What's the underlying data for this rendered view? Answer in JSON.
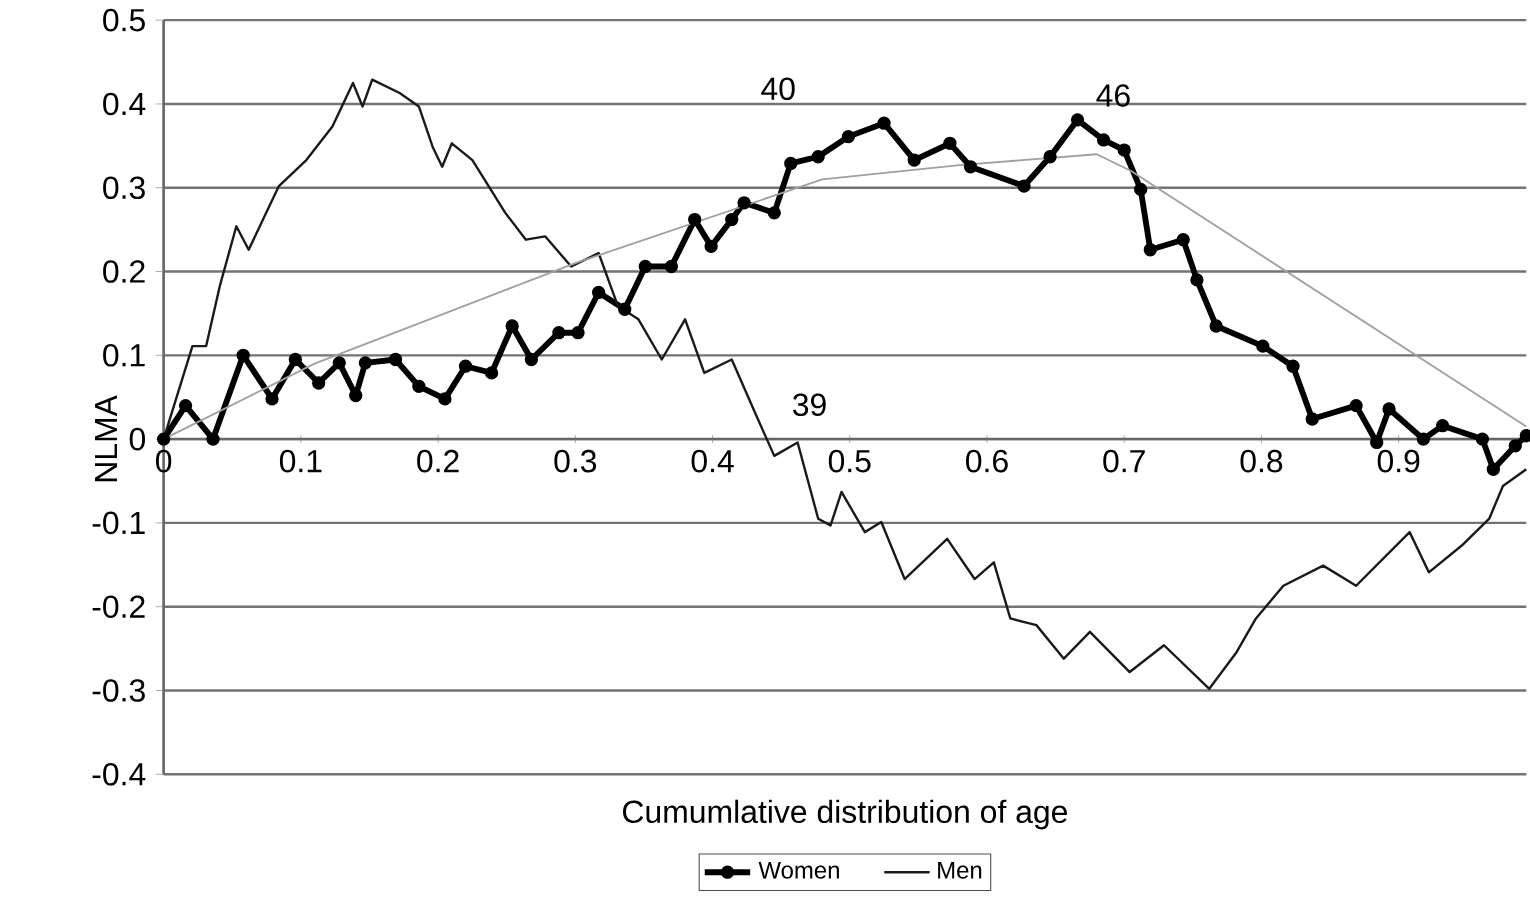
{
  "chart_data": {
    "type": "line",
    "xlabel": "Cumumlative distribution of age",
    "ylabel": "NLMA",
    "xlim": [
      0,
      0.993
    ],
    "ylim": [
      -0.4,
      0.5
    ],
    "xticks": [
      0,
      0.1,
      0.2,
      0.3,
      0.4,
      0.5,
      0.6,
      0.7,
      0.8,
      0.9
    ],
    "yticks": [
      -0.4,
      -0.3,
      -0.2,
      -0.1,
      0,
      0.1,
      0.2,
      0.3,
      0.4,
      0.5
    ],
    "grid": "y",
    "legend": "bottom",
    "line_style": "solid",
    "annotations": [
      "40",
      "46",
      "39"
    ],
    "series": [
      {
        "name": "Women",
        "color": "#000000",
        "marker": "circle",
        "x": [
          0,
          0.016,
          0.036,
          0.058,
          0.079,
          0.096,
          0.113,
          0.128,
          0.14,
          0.147,
          0.169,
          0.186,
          0.205,
          0.22,
          0.239,
          0.254,
          0.268,
          0.288,
          0.302,
          0.317,
          0.336,
          0.351,
          0.37,
          0.387,
          0.399,
          0.414,
          0.423,
          0.445,
          0.457,
          0.477,
          0.499,
          0.525,
          0.547,
          0.573,
          0.588,
          0.627,
          0.646,
          0.666,
          0.685,
          0.7,
          0.712,
          0.719,
          0.743,
          0.753,
          0.767,
          0.801,
          0.823,
          0.837,
          0.869,
          0.884,
          0.893,
          0.918,
          0.932,
          0.961,
          0.969,
          0.985,
          0.993
        ],
        "values": [
          0,
          0.04,
          0,
          0.1,
          0.048,
          0.095,
          0.067,
          0.091,
          0.052,
          0.091,
          0.095,
          0.063,
          0.048,
          0.087,
          0.079,
          0.135,
          0.095,
          0.127,
          0.127,
          0.175,
          0.155,
          0.206,
          0.206,
          0.262,
          0.23,
          0.262,
          0.282,
          0.27,
          0.329,
          0.337,
          0.361,
          0.377,
          0.333,
          0.353,
          0.325,
          0.302,
          0.337,
          0.381,
          0.357,
          0.345,
          0.298,
          0.226,
          0.238,
          0.19,
          0.135,
          0.111,
          0.087,
          0.024,
          0.04,
          -0.004,
          0.036,
          0,
          0.016,
          0,
          -0.036,
          -0.008,
          0.004
        ]
      },
      {
        "name": "Men",
        "color": "#1a1a1a",
        "marker": "none",
        "x": [
          0,
          0.021,
          0.031,
          0.041,
          0.053,
          0.062,
          0.084,
          0.104,
          0.123,
          0.138,
          0.145,
          0.152,
          0.172,
          0.186,
          0.196,
          0.203,
          0.21,
          0.225,
          0.249,
          0.264,
          0.278,
          0.297,
          0.317,
          0.331,
          0.346,
          0.363,
          0.38,
          0.394,
          0.414,
          0.433,
          0.445,
          0.462,
          0.477,
          0.486,
          0.494,
          0.511,
          0.523,
          0.54,
          0.571,
          0.591,
          0.605,
          0.617,
          0.636,
          0.656,
          0.675,
          0.704,
          0.729,
          0.762,
          0.782,
          0.796,
          0.816,
          0.845,
          0.869,
          0.908,
          0.922,
          0.946,
          0.966,
          0.976,
          0.993
        ],
        "values": [
          0,
          0.111,
          0.111,
          0.183,
          0.254,
          0.226,
          0.302,
          0.333,
          0.373,
          0.425,
          0.397,
          0.429,
          0.413,
          0.397,
          0.349,
          0.325,
          0.353,
          0.333,
          0.27,
          0.238,
          0.242,
          0.206,
          0.222,
          0.159,
          0.143,
          0.095,
          0.143,
          0.079,
          0.095,
          0.024,
          -0.02,
          -0.004,
          -0.095,
          -0.103,
          -0.063,
          -0.111,
          -0.099,
          -0.167,
          -0.119,
          -0.167,
          -0.147,
          -0.214,
          -0.222,
          -0.262,
          -0.23,
          -0.278,
          -0.246,
          -0.298,
          -0.254,
          -0.214,
          -0.175,
          -0.151,
          -0.175,
          -0.111,
          -0.159,
          -0.127,
          -0.095,
          -0.056,
          -0.036
        ]
      },
      {
        "color": "#a0a0a0",
        "marker": "none",
        "x": [
          0,
          0.11,
          0.3,
          0.48,
          0.58,
          0.68,
          0.705,
          0.993
        ],
        "values": [
          0,
          0.09,
          0.21,
          0.31,
          0.327,
          0.34,
          0.32,
          0.015
        ]
      }
    ]
  }
}
